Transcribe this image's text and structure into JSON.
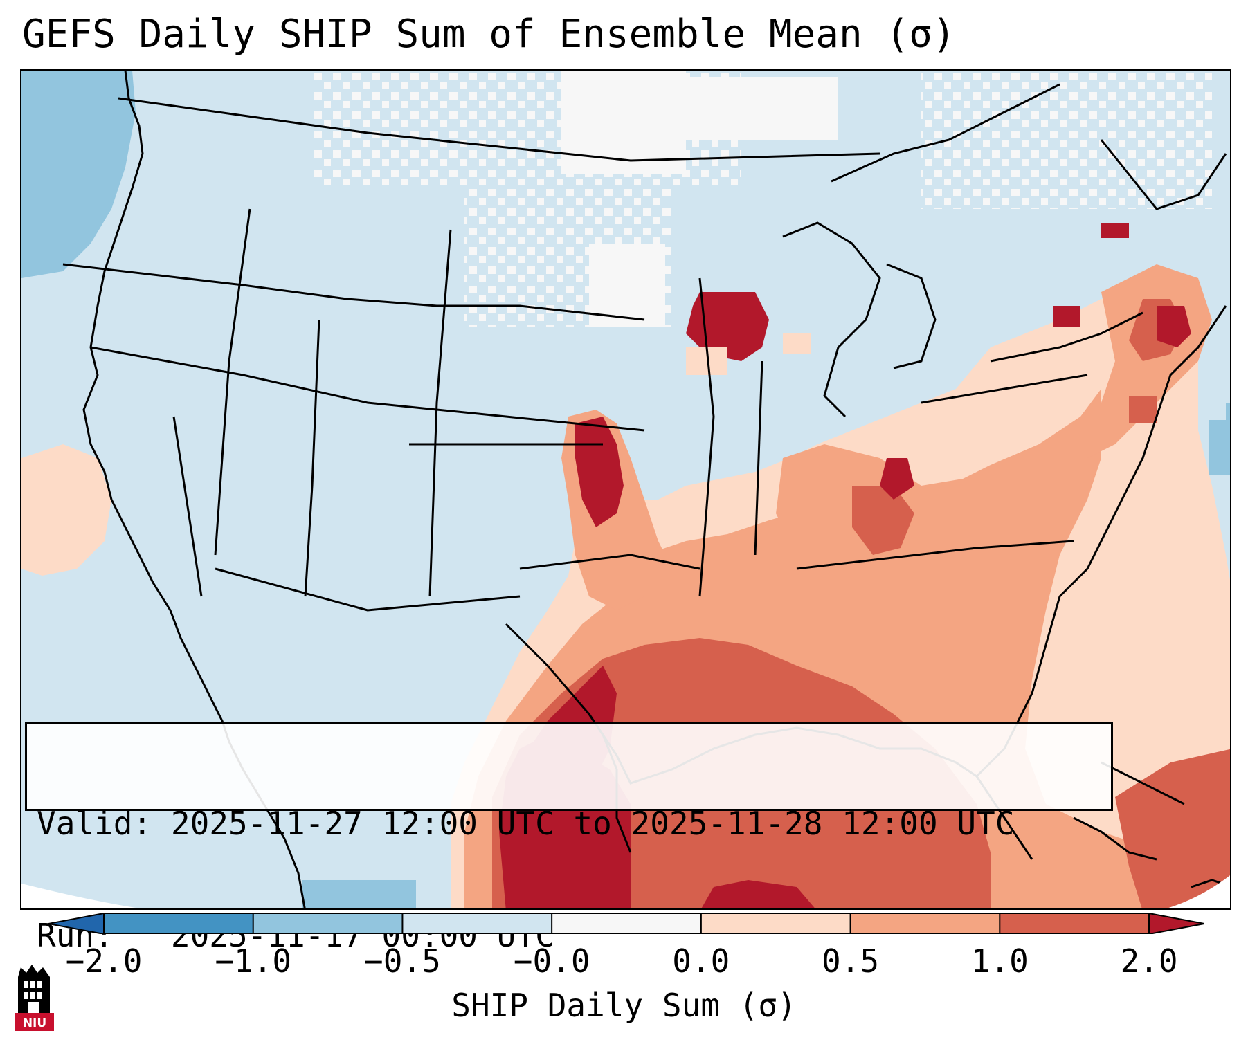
{
  "title": "GEFS Daily SHIP Sum of Ensemble Mean (σ)",
  "valid_box": {
    "valid_label": "Valid:",
    "valid_value": "2025-11-27 12:00 UTC to 2025-11-28 12:00 UTC",
    "run_label": "Run:",
    "run_value": "2025-11-17 00:00 UTC"
  },
  "colorbar": {
    "label": "SHIP Daily Sum (σ)",
    "ticks": [
      "−2.0",
      "−1.0",
      "−0.5",
      "−0.0",
      "0.0",
      "0.5",
      "1.0",
      "2.0"
    ],
    "colors": [
      "#4393c3",
      "#92c5de",
      "#d1e5f0",
      "#f7f7f7",
      "#fddbc7",
      "#f4a582",
      "#d6604d",
      "#b2182b"
    ],
    "extend": "both"
  },
  "logo": {
    "text": "NIU"
  },
  "map": {
    "background_color": "#d1e5f0",
    "land_border_color": "#000000"
  }
}
